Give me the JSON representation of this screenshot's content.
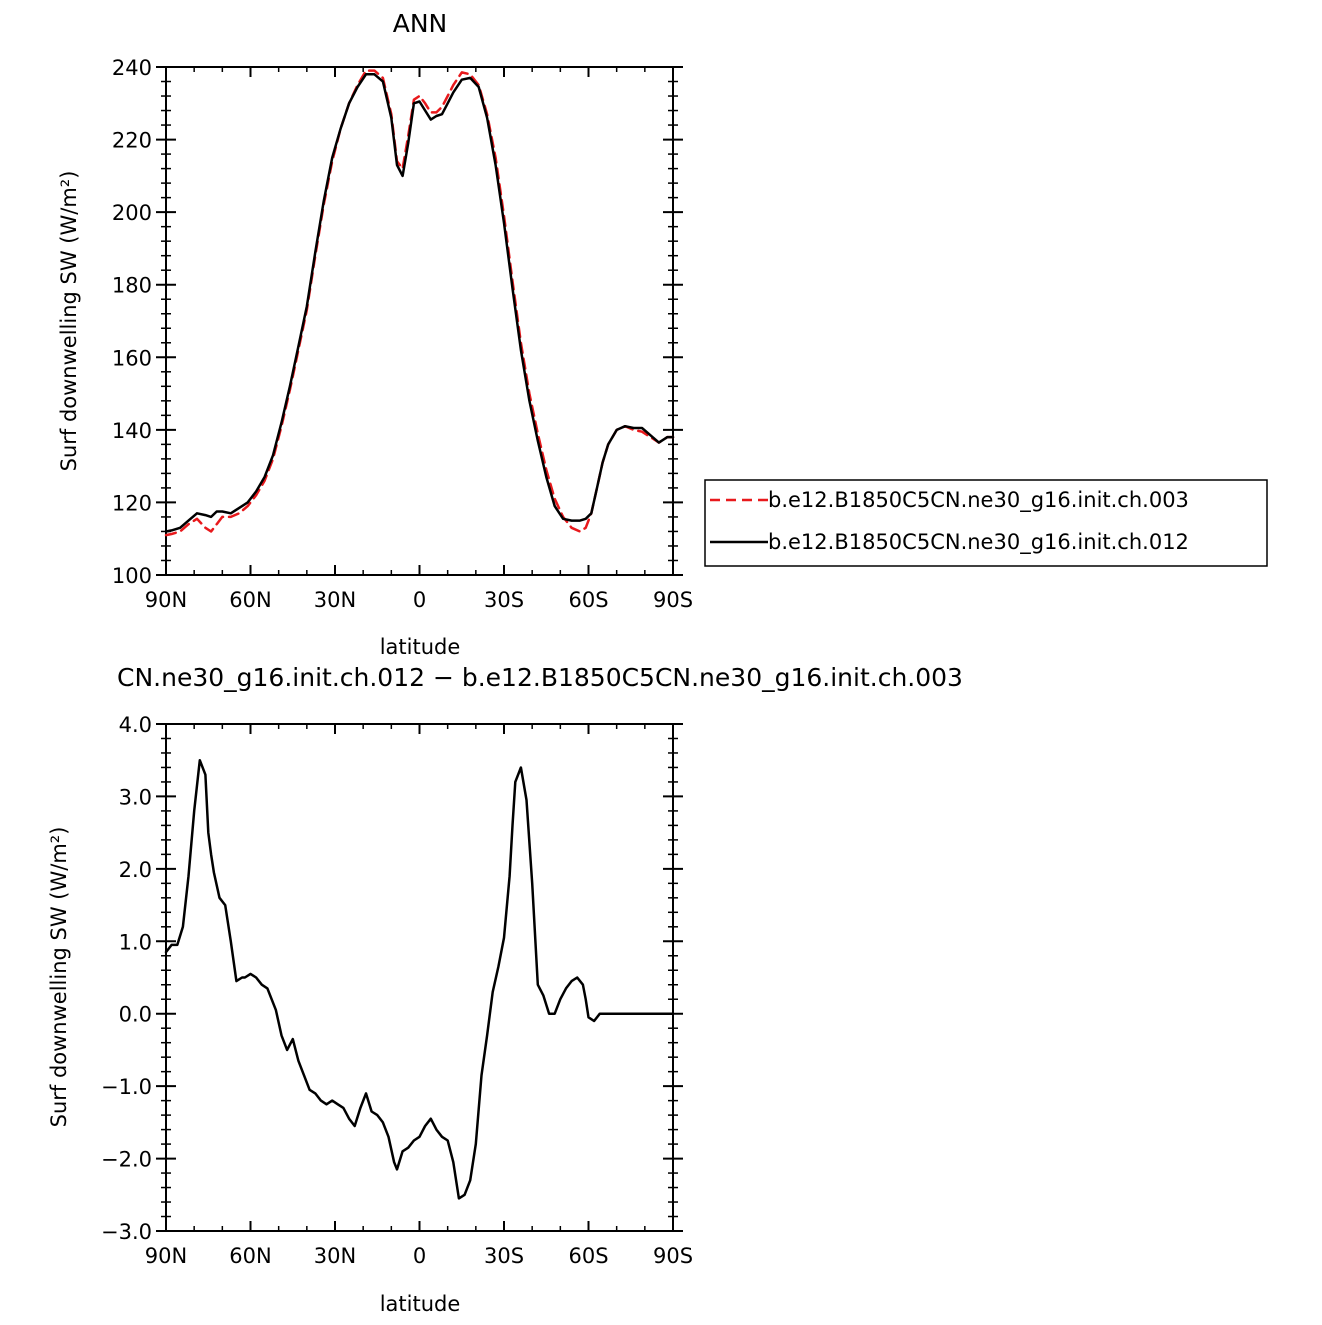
{
  "chart_data": [
    {
      "type": "line",
      "title": "ANN",
      "xlabel": "latitude",
      "ylabel": "Surf downwelling SW (W/m²)",
      "xlim": [
        90,
        -90
      ],
      "ylim": [
        100,
        240
      ],
      "xtick_values": [
        90,
        60,
        30,
        0,
        -30,
        -60,
        -90
      ],
      "xtick_labels": [
        "90N",
        "60N",
        "30N",
        "0",
        "30S",
        "60S",
        "90S"
      ],
      "ytick_values": [
        100,
        120,
        140,
        160,
        180,
        200,
        220,
        240
      ],
      "ytick_labels": [
        "100",
        "120",
        "140",
        "160",
        "180",
        "200",
        "220",
        "240"
      ],
      "grid": false,
      "legend_position": "right",
      "series": [
        {
          "name": "b.e12.B1850C5CN.ne30_g16.init.ch.003",
          "color": "#e8191c",
          "dash": "dashed",
          "x": [
            90,
            88,
            85,
            82,
            79,
            76,
            74,
            72,
            70,
            67,
            64,
            61,
            58,
            55,
            52,
            49,
            46,
            43,
            40,
            37,
            34,
            31,
            28,
            25,
            22,
            19,
            16,
            13,
            10,
            8,
            6,
            4,
            2,
            0,
            -2,
            -4,
            -6,
            -8,
            -10,
            -12,
            -15,
            -18,
            -21,
            -24,
            -27,
            -30,
            -33,
            -36,
            -39,
            -42,
            -45,
            -48,
            -51,
            -54,
            -57,
            -59,
            -61,
            -63,
            -65,
            -67,
            -70,
            -73,
            -76,
            -79,
            -82,
            -85,
            -88,
            -90
          ],
          "y": [
            111,
            111.3,
            112,
            114,
            115.5,
            113,
            112,
            114,
            116,
            116,
            117,
            119,
            122,
            126,
            132,
            141,
            151,
            162,
            173,
            188,
            202,
            214,
            223,
            230,
            235,
            239,
            239,
            237,
            227,
            214,
            212,
            221,
            231,
            232,
            230,
            227.5,
            227.5,
            229,
            232,
            235,
            238.5,
            238,
            235,
            227,
            215,
            199,
            181,
            164,
            150,
            139,
            129,
            121,
            116,
            113,
            112,
            113,
            117,
            124,
            131,
            136,
            140,
            141,
            140,
            139.5,
            138,
            136.5,
            138,
            138
          ],
          "note": ""
        },
        {
          "name": "b.e12.B1850C5CN.ne30_g16.init.ch.012",
          "color": "#000000",
          "dash": "solid",
          "x": [
            90,
            88,
            85,
            82,
            79,
            76,
            74,
            72,
            70,
            67,
            64,
            61,
            58,
            55,
            52,
            49,
            46,
            43,
            40,
            37,
            34,
            31,
            28,
            25,
            22,
            19,
            16,
            13,
            10,
            8,
            6,
            4,
            2,
            0,
            -2,
            -4,
            -6,
            -8,
            -10,
            -12,
            -15,
            -18,
            -21,
            -24,
            -27,
            -30,
            -33,
            -36,
            -39,
            -42,
            -45,
            -48,
            -51,
            -54,
            -57,
            -59,
            -61,
            -63,
            -65,
            -67,
            -70,
            -73,
            -76,
            -79,
            -82,
            -85,
            -88,
            -90
          ],
          "y": [
            112,
            112.3,
            113,
            115,
            117,
            116.5,
            116,
            117.5,
            117.5,
            117,
            118.5,
            120,
            123,
            127,
            133,
            142,
            152,
            163,
            174,
            189,
            203,
            215,
            223,
            230,
            234.5,
            238,
            238,
            236,
            226,
            213,
            210,
            219,
            230,
            230.5,
            228,
            225.5,
            226.5,
            227,
            230,
            233,
            236.5,
            237,
            234.5,
            226,
            213,
            197,
            179,
            162,
            148,
            137,
            127,
            119,
            115.5,
            115,
            115,
            115.5,
            117,
            124,
            131,
            136,
            140,
            141,
            140.5,
            140.5,
            138.5,
            136.5,
            138,
            138
          ]
        }
      ]
    },
    {
      "type": "line",
      "title": "CN.ne30_g16.init.ch.012 − b.e12.B1850C5CN.ne30_g16.init.ch.003",
      "xlabel": "latitude",
      "ylabel": "Surf downwelling SW (W/m²)",
      "xlim": [
        90,
        -90
      ],
      "ylim": [
        -3.0,
        4.0
      ],
      "xtick_values": [
        90,
        60,
        30,
        0,
        -30,
        -60,
        -90
      ],
      "xtick_labels": [
        "90N",
        "60N",
        "30N",
        "0",
        "30S",
        "60S",
        "90S"
      ],
      "ytick_values": [
        -3,
        -2,
        -1,
        0,
        1,
        2,
        3,
        4
      ],
      "ytick_labels": [
        "−3.0",
        "−2.0",
        "−1.0",
        "0.0",
        "1.0",
        "2.0",
        "3.0",
        "4.0"
      ],
      "grid": false,
      "series": [
        {
          "color": "#000000",
          "dash": "solid",
          "x": [
            90,
            88,
            86,
            84,
            82,
            80,
            78,
            76,
            75,
            74,
            73,
            71,
            69,
            67,
            65,
            63,
            62,
            60,
            58,
            56,
            54,
            51,
            49,
            47,
            45,
            43,
            41,
            39,
            37,
            35,
            33,
            31,
            29,
            27,
            25,
            23,
            21,
            19,
            17,
            15,
            13,
            11,
            9,
            8,
            6,
            4,
            2,
            0,
            -2,
            -4,
            -6,
            -8,
            -10,
            -12,
            -14,
            -16,
            -18,
            -20,
            -22,
            -24,
            -26,
            -28,
            -30,
            -32,
            -33,
            -34,
            -36,
            -38,
            -40,
            -42,
            -44,
            -46,
            -48,
            -50,
            -52,
            -54,
            -56,
            -58,
            -59,
            -60,
            -62,
            -64,
            -66,
            -68,
            -70,
            -72,
            -74,
            -76,
            -78,
            -80,
            -82,
            -84,
            -86,
            -88,
            -90
          ],
          "y": [
            0.85,
            0.95,
            0.95,
            1.2,
            1.9,
            2.8,
            3.5,
            3.3,
            2.5,
            2.2,
            1.95,
            1.6,
            1.5,
            1.0,
            0.45,
            0.5,
            0.5,
            0.55,
            0.5,
            0.4,
            0.35,
            0.05,
            -0.3,
            -0.5,
            -0.35,
            -0.65,
            -0.85,
            -1.05,
            -1.1,
            -1.2,
            -1.25,
            -1.2,
            -1.25,
            -1.3,
            -1.45,
            -1.55,
            -1.3,
            -1.1,
            -1.35,
            -1.4,
            -1.5,
            -1.7,
            -2.05,
            -2.15,
            -1.9,
            -1.85,
            -1.75,
            -1.7,
            -1.55,
            -1.45,
            -1.6,
            -1.7,
            -1.75,
            -2.05,
            -2.55,
            -2.5,
            -2.3,
            -1.8,
            -0.85,
            -0.3,
            0.3,
            0.65,
            1.05,
            1.9,
            2.6,
            3.2,
            3.4,
            2.95,
            1.8,
            0.4,
            0.25,
            0.0,
            0.0,
            0.2,
            0.35,
            0.45,
            0.5,
            0.4,
            0.2,
            -0.05,
            -0.1,
            0.0,
            0.0,
            0.0,
            0.0,
            0.0,
            0.0,
            0.0,
            0.0,
            0.0,
            0.0,
            0.0,
            0.0,
            0.0,
            0.0
          ]
        }
      ]
    }
  ]
}
